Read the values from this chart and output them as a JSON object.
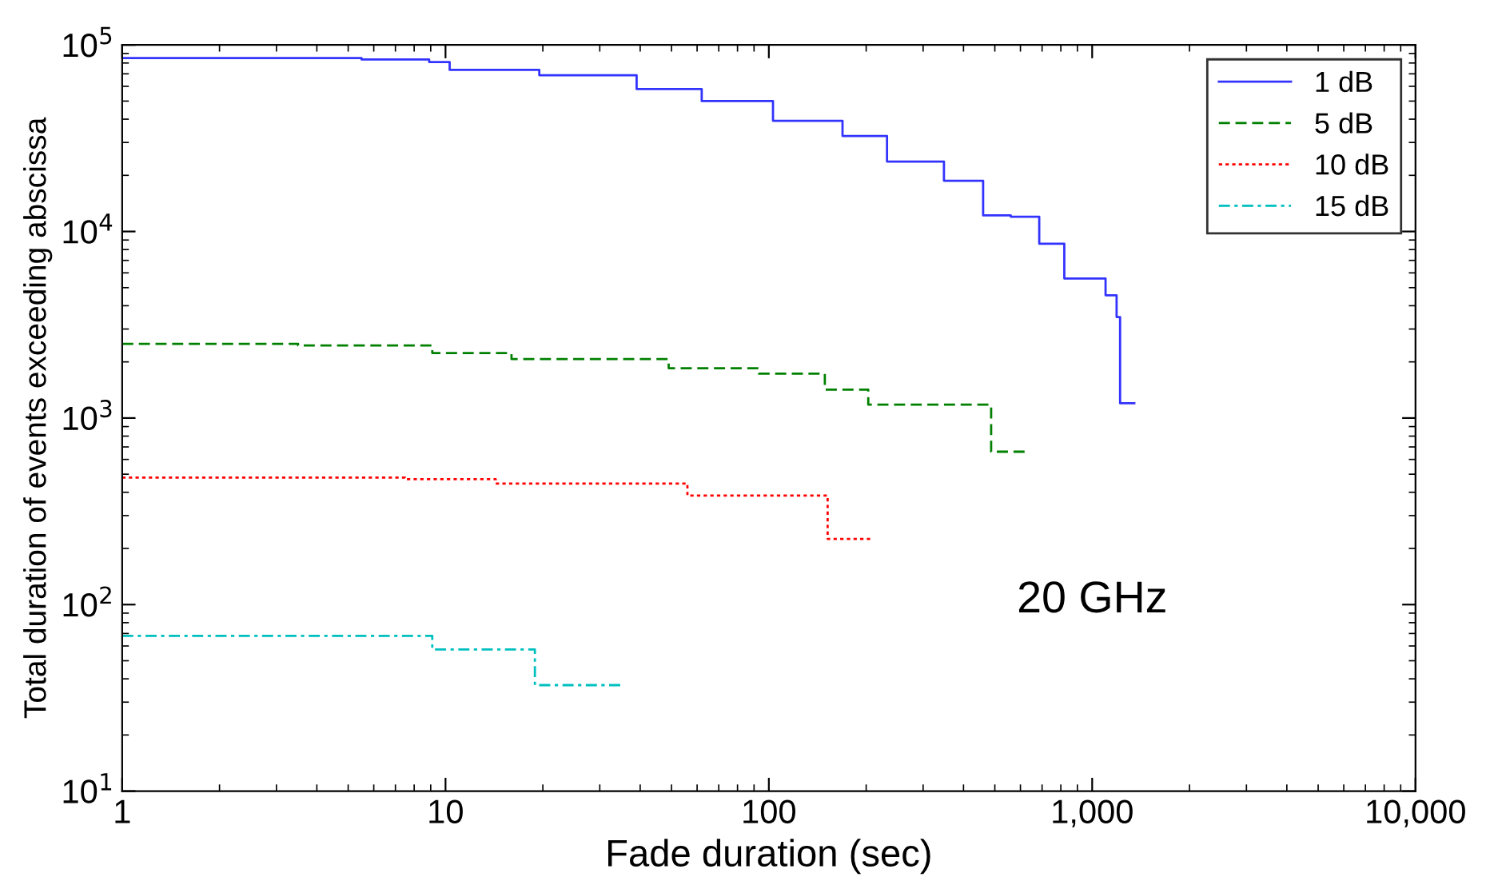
{
  "chart_data": {
    "type": "step",
    "xlabel": "Fade duration (sec)",
    "ylabel": "Total duration of events exceeding abscissa",
    "log": "xy",
    "xlim": [
      1,
      10000
    ],
    "ylim": [
      10,
      100000
    ],
    "xticks": [
      1,
      10,
      100,
      {
        "value": 1000,
        "label": "1,000"
      },
      {
        "value": 10000,
        "label": "10,000"
      }
    ],
    "yticks": [
      {
        "value": 10,
        "label": "10$^{1}$"
      },
      {
        "value": 100,
        "label": "10$^{2}$"
      },
      {
        "value": 1000,
        "label": "10$^{3}$"
      },
      {
        "value": 10000,
        "label": "10$^{4}$"
      },
      {
        "value": 100000,
        "label": "10$^{5}$"
      }
    ],
    "legend": "top right",
    "grid": false,
    "annotations": [
      "20 GHz"
    ],
    "series": [
      {
        "name": "1 dB",
        "color": "#3333ff",
        "line_style": "solid",
        "x": [
          1,
          5.5,
          8.9,
          10.3,
          19.5,
          39,
          62,
          103,
          169,
          232,
          348,
          460,
          560,
          686,
          820,
          1100,
          1190,
          1220,
          1350
        ],
        "values": [
          85000,
          83500,
          81000,
          73500,
          68800,
          58000,
          50000,
          39200,
          32500,
          23700,
          18700,
          12200,
          12000,
          8600,
          5600,
          4550,
          3480,
          1200,
          1200
        ]
      },
      {
        "name": "5 dB",
        "color": "#008000",
        "line_style": "dashed",
        "x": [
          1,
          3.5,
          9.1,
          16,
          49,
          93,
          149,
          203,
          487,
          640
        ],
        "values": [
          2500,
          2450,
          2230,
          2070,
          1850,
          1730,
          1420,
          1180,
          660,
          660
        ]
      },
      {
        "name": "10 dB",
        "color": "#ff0000",
        "line_style": "dotted",
        "x": [
          1,
          7.5,
          14.3,
          56,
          152,
          208
        ],
        "values": [
          480,
          470,
          445,
          384,
          225,
          225
        ]
      },
      {
        "name": "15 dB",
        "color": "#00bfbf",
        "line_style": "dashdot",
        "x": [
          1,
          9.1,
          18.9,
          35.6
        ],
        "values": [
          68,
          57.5,
          37,
          37
        ]
      }
    ]
  }
}
